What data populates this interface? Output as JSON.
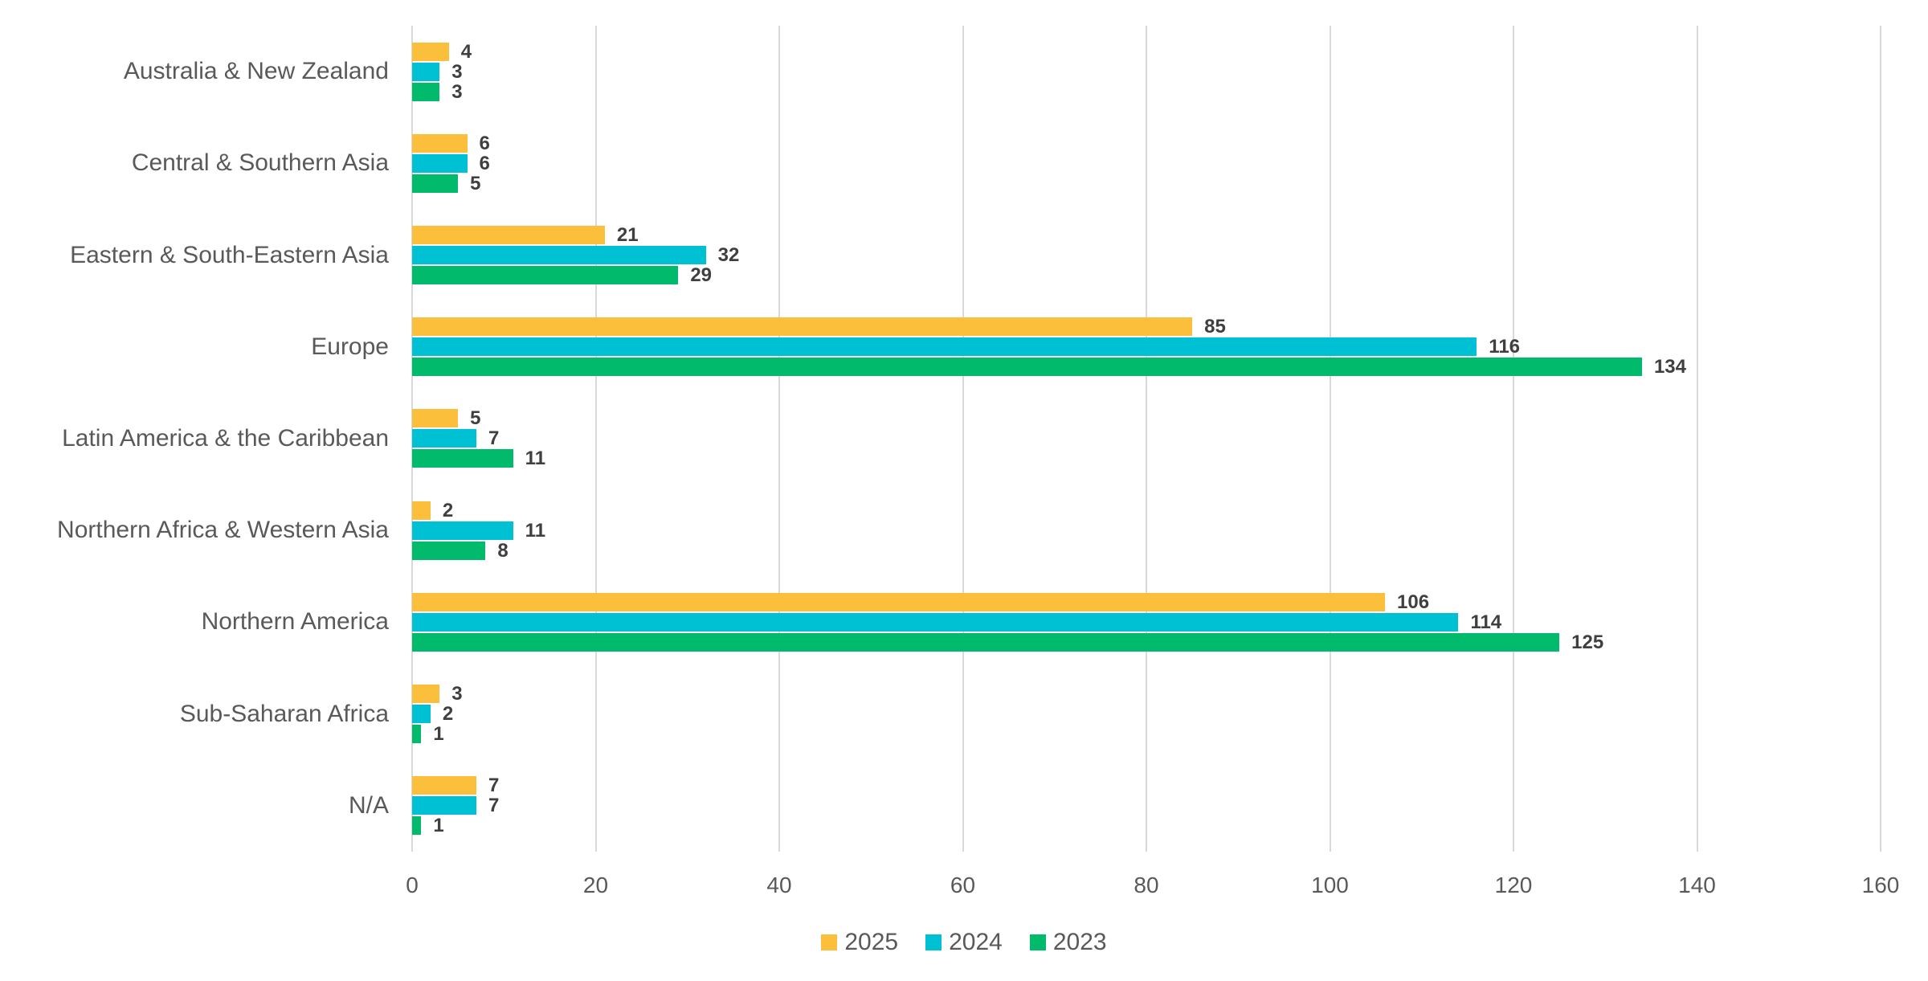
{
  "chart_data": {
    "type": "bar",
    "orientation": "horizontal",
    "title": "",
    "categories": [
      "Australia & New Zealand",
      "Central & Southern Asia",
      "Eastern & South-Eastern Asia",
      "Europe",
      "Latin America & the Caribbean",
      "Northern Africa & Western Asia",
      "Northern America",
      "Sub-Saharan Africa",
      "N/A"
    ],
    "series": [
      {
        "name": "2025",
        "color": "#FCBF3C",
        "values": [
          4,
          6,
          21,
          85,
          5,
          2,
          106,
          3,
          7
        ]
      },
      {
        "name": "2024",
        "color": "#00C0D3",
        "values": [
          3,
          6,
          32,
          116,
          7,
          11,
          114,
          2,
          7
        ]
      },
      {
        "name": "2023",
        "color": "#02BA6B",
        "values": [
          3,
          5,
          29,
          134,
          11,
          8,
          125,
          1,
          1
        ]
      }
    ],
    "xlabel": "",
    "ylabel": "",
    "xlim": [
      0,
      160
    ],
    "x_ticks": [
      0,
      20,
      40,
      60,
      80,
      100,
      120,
      140,
      160
    ],
    "grid": true,
    "data_labels": true,
    "legend_position": "bottom"
  },
  "colors": {
    "background": "#FFFFFF",
    "gridline": "#D9D9D9",
    "axis_text": "#595959",
    "value_text": "#3F3F3F"
  }
}
